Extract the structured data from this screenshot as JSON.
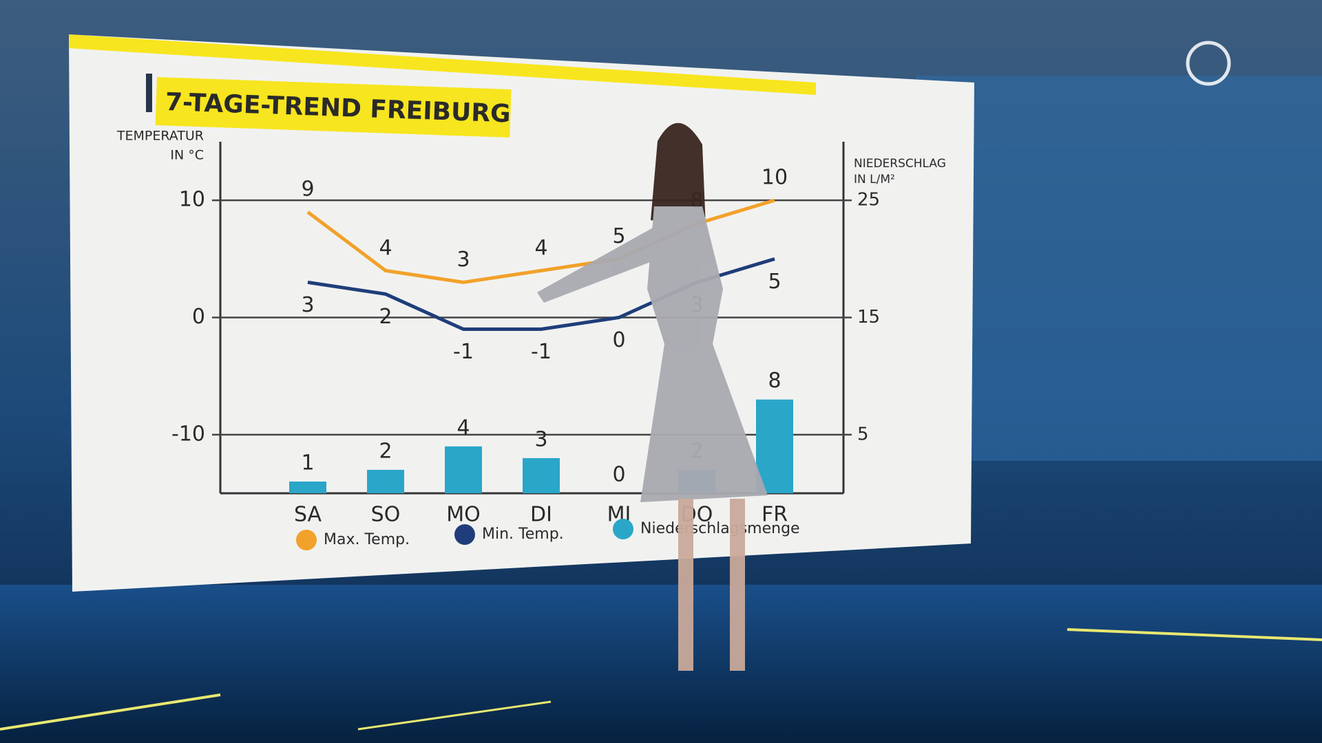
{
  "chart_data": {
    "type": "weather-trend",
    "title": "7-TAGE-TREND FREIBURG",
    "y_label": [
      "TEMPERATUR",
      "IN °C"
    ],
    "y2_label": [
      "NIEDERSCHLAG",
      "IN L/M²"
    ],
    "categories": [
      "SA",
      "SO",
      "MO",
      "DI",
      "MI",
      "DO",
      "FR"
    ],
    "series": [
      {
        "name": "Max. Temp.",
        "kind": "line",
        "color": "#f2a12a",
        "values": [
          9,
          4,
          3,
          4,
          5,
          8,
          10
        ]
      },
      {
        "name": "Min. Temp.",
        "kind": "line",
        "color": "#1f3d7a",
        "values": [
          3,
          2,
          -1,
          -1,
          0,
          3,
          5
        ]
      },
      {
        "name": "Niederschlagsmenge",
        "kind": "bar",
        "axis": "y2",
        "color": "#2aa6c9",
        "values": [
          1,
          2,
          4,
          3,
          0,
          2,
          8
        ]
      }
    ],
    "ylim": [
      -15,
      15
    ],
    "yticks": [
      -10,
      0,
      10
    ],
    "y2lim": [
      0,
      30
    ],
    "y2ticks": [
      5,
      15,
      25
    ],
    "grid": true
  }
}
